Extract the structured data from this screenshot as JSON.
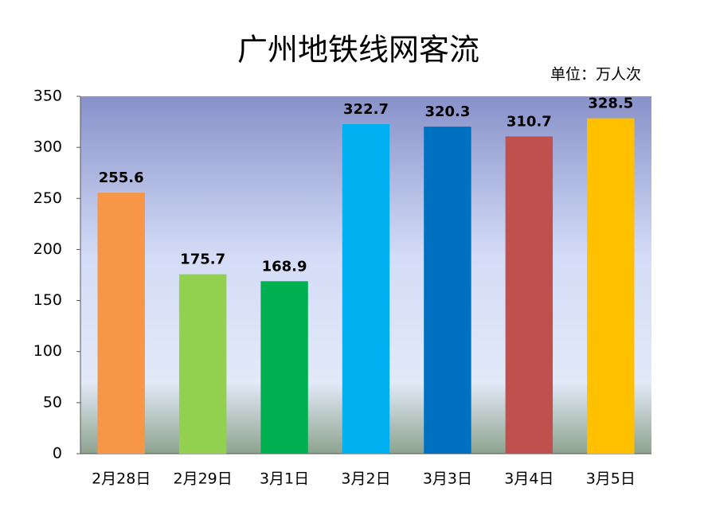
{
  "chart_data": {
    "type": "bar",
    "title": "广州地铁线网客流",
    "unit_note": "单位：万人次",
    "categories": [
      "2月28日",
      "2月29日",
      "3月1日",
      "3月2日",
      "3月3日",
      "3月4日",
      "3月5日"
    ],
    "values": [
      255.6,
      175.7,
      168.9,
      322.7,
      320.3,
      310.7,
      328.5
    ],
    "colors": [
      "#f79646",
      "#92d050",
      "#00b050",
      "#00b0f0",
      "#0070c0",
      "#c0504d",
      "#ffc000"
    ],
    "ylim": [
      0,
      350
    ],
    "yticks": [
      0,
      50,
      100,
      150,
      200,
      250,
      300,
      350
    ],
    "grid": false
  }
}
